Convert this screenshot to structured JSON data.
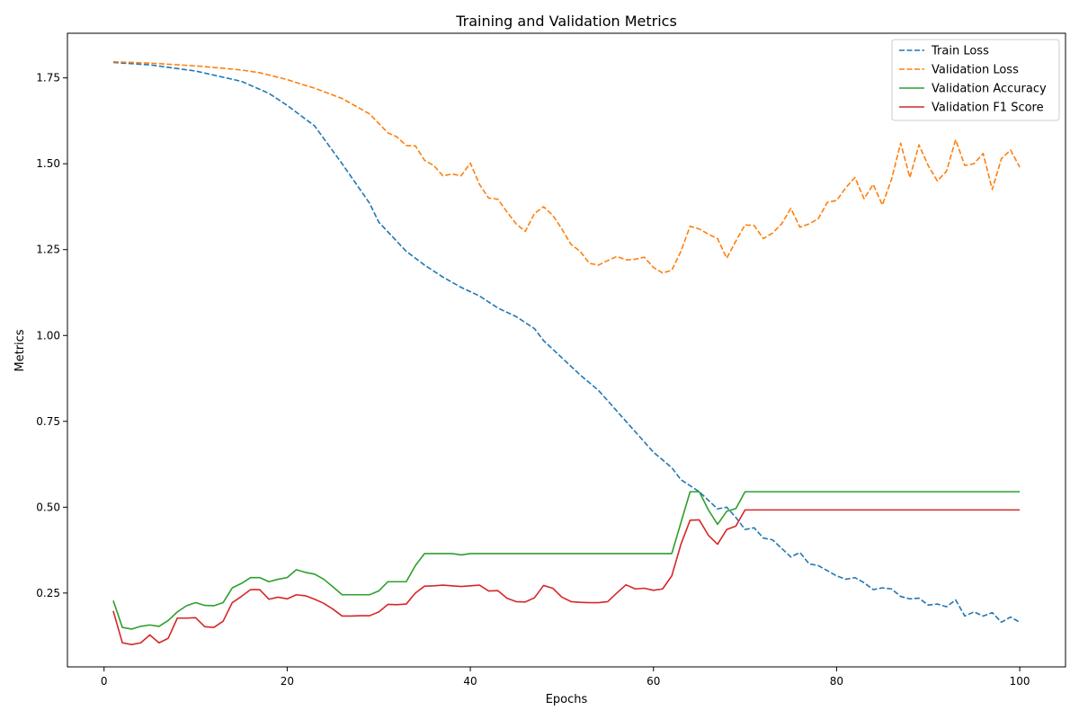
{
  "chart_data": {
    "type": "line",
    "title": "Training and Validation Metrics",
    "xlabel": "Epochs",
    "ylabel": "Metrics",
    "xlim": [
      -4,
      105
    ],
    "ylim": [
      0.035,
      1.88
    ],
    "xticks": [
      0,
      20,
      40,
      60,
      80,
      100
    ],
    "yticks": [
      0.25,
      0.5,
      0.75,
      1.0,
      1.25,
      1.5,
      1.75
    ],
    "ytick_labels": [
      "0.25",
      "0.50",
      "0.75",
      "1.00",
      "1.25",
      "1.50",
      "1.75"
    ],
    "grid": false,
    "legend_position": "top-right",
    "series": [
      {
        "name": "Train Loss",
        "color": "#1f77b4",
        "style": "dashed",
        "points": [
          [
            1,
            1.795
          ],
          [
            5,
            1.788
          ],
          [
            10,
            1.77
          ],
          [
            15,
            1.74
          ],
          [
            18,
            1.705
          ],
          [
            20,
            1.67
          ],
          [
            23,
            1.61
          ],
          [
            26,
            1.5
          ],
          [
            29,
            1.385
          ],
          [
            30,
            1.33
          ],
          [
            33,
            1.245
          ],
          [
            35,
            1.205
          ],
          [
            37,
            1.17
          ],
          [
            39,
            1.14
          ],
          [
            41,
            1.115
          ],
          [
            43,
            1.08
          ],
          [
            45,
            1.055
          ],
          [
            47,
            1.02
          ],
          [
            48,
            0.985
          ],
          [
            50,
            0.935
          ],
          [
            52,
            0.885
          ],
          [
            54,
            0.84
          ],
          [
            56,
            0.78
          ],
          [
            58,
            0.72
          ],
          [
            60,
            0.66
          ],
          [
            62,
            0.615
          ],
          [
            63,
            0.58
          ],
          [
            65,
            0.545
          ],
          [
            66,
            0.52
          ],
          [
            67,
            0.495
          ],
          [
            68,
            0.5
          ],
          [
            69,
            0.47
          ],
          [
            70,
            0.435
          ],
          [
            71,
            0.44
          ],
          [
            72,
            0.41
          ],
          [
            73,
            0.405
          ],
          [
            75,
            0.355
          ],
          [
            76,
            0.368
          ],
          [
            77,
            0.335
          ],
          [
            78,
            0.33
          ],
          [
            80,
            0.3
          ],
          [
            81,
            0.29
          ],
          [
            82,
            0.295
          ],
          [
            83,
            0.28
          ],
          [
            84,
            0.26
          ],
          [
            85,
            0.265
          ],
          [
            86,
            0.262
          ],
          [
            87,
            0.24
          ],
          [
            88,
            0.233
          ],
          [
            89,
            0.235
          ],
          [
            90,
            0.215
          ],
          [
            91,
            0.218
          ],
          [
            92,
            0.21
          ],
          [
            93,
            0.23
          ],
          [
            94,
            0.183
          ],
          [
            95,
            0.195
          ],
          [
            96,
            0.183
          ],
          [
            97,
            0.193
          ],
          [
            98,
            0.165
          ],
          [
            99,
            0.18
          ],
          [
            100,
            0.165
          ]
        ]
      },
      {
        "name": "Validation Loss",
        "color": "#ff7f0e",
        "style": "dashed",
        "points": [
          [
            1,
            1.797
          ],
          [
            5,
            1.793
          ],
          [
            10,
            1.785
          ],
          [
            13,
            1.778
          ],
          [
            15,
            1.773
          ],
          [
            17,
            1.765
          ],
          [
            20,
            1.745
          ],
          [
            22,
            1.728
          ],
          [
            23,
            1.72
          ],
          [
            26,
            1.69
          ],
          [
            28,
            1.66
          ],
          [
            29,
            1.645
          ],
          [
            31,
            1.59
          ],
          [
            32,
            1.578
          ],
          [
            33,
            1.553
          ],
          [
            34,
            1.552
          ],
          [
            35,
            1.51
          ],
          [
            36,
            1.495
          ],
          [
            37,
            1.465
          ],
          [
            38,
            1.47
          ],
          [
            39,
            1.465
          ],
          [
            40,
            1.502
          ],
          [
            41,
            1.44
          ],
          [
            42,
            1.4
          ],
          [
            43,
            1.397
          ],
          [
            44,
            1.36
          ],
          [
            45,
            1.325
          ],
          [
            46,
            1.303
          ],
          [
            47,
            1.355
          ],
          [
            48,
            1.375
          ],
          [
            49,
            1.35
          ],
          [
            50,
            1.31
          ],
          [
            51,
            1.265
          ],
          [
            52,
            1.245
          ],
          [
            53,
            1.21
          ],
          [
            54,
            1.205
          ],
          [
            55,
            1.218
          ],
          [
            56,
            1.23
          ],
          [
            57,
            1.22
          ],
          [
            58,
            1.222
          ],
          [
            59,
            1.228
          ],
          [
            60,
            1.198
          ],
          [
            61,
            1.182
          ],
          [
            62,
            1.19
          ],
          [
            63,
            1.245
          ],
          [
            64,
            1.318
          ],
          [
            65,
            1.31
          ],
          [
            66,
            1.295
          ],
          [
            67,
            1.282
          ],
          [
            68,
            1.225
          ],
          [
            69,
            1.275
          ],
          [
            70,
            1.322
          ],
          [
            71,
            1.32
          ],
          [
            72,
            1.282
          ],
          [
            73,
            1.298
          ],
          [
            74,
            1.325
          ],
          [
            75,
            1.37
          ],
          [
            76,
            1.315
          ],
          [
            77,
            1.325
          ],
          [
            78,
            1.34
          ],
          [
            79,
            1.388
          ],
          [
            80,
            1.393
          ],
          [
            81,
            1.43
          ],
          [
            82,
            1.46
          ],
          [
            83,
            1.398
          ],
          [
            84,
            1.44
          ],
          [
            85,
            1.38
          ],
          [
            86,
            1.455
          ],
          [
            87,
            1.56
          ],
          [
            88,
            1.46
          ],
          [
            89,
            1.555
          ],
          [
            90,
            1.495
          ],
          [
            91,
            1.45
          ],
          [
            92,
            1.478
          ],
          [
            93,
            1.57
          ],
          [
            94,
            1.495
          ],
          [
            95,
            1.5
          ],
          [
            96,
            1.53
          ],
          [
            97,
            1.425
          ],
          [
            98,
            1.515
          ],
          [
            99,
            1.54
          ],
          [
            100,
            1.49
          ]
        ]
      },
      {
        "name": "Validation Accuracy",
        "color": "#2ca02c",
        "style": "solid",
        "points": [
          [
            1,
            0.228
          ],
          [
            2,
            0.15
          ],
          [
            3,
            0.145
          ],
          [
            4,
            0.153
          ],
          [
            5,
            0.157
          ],
          [
            6,
            0.153
          ],
          [
            7,
            0.17
          ],
          [
            8,
            0.195
          ],
          [
            9,
            0.213
          ],
          [
            10,
            0.222
          ],
          [
            11,
            0.214
          ],
          [
            12,
            0.213
          ],
          [
            13,
            0.222
          ],
          [
            14,
            0.265
          ],
          [
            15,
            0.278
          ],
          [
            16,
            0.295
          ],
          [
            17,
            0.295
          ],
          [
            18,
            0.283
          ],
          [
            19,
            0.29
          ],
          [
            20,
            0.295
          ],
          [
            21,
            0.318
          ],
          [
            22,
            0.31
          ],
          [
            23,
            0.305
          ],
          [
            24,
            0.29
          ],
          [
            25,
            0.268
          ],
          [
            26,
            0.245
          ],
          [
            27,
            0.245
          ],
          [
            28,
            0.245
          ],
          [
            29,
            0.245
          ],
          [
            30,
            0.256
          ],
          [
            31,
            0.283
          ],
          [
            32,
            0.283
          ],
          [
            33,
            0.283
          ],
          [
            34,
            0.33
          ],
          [
            35,
            0.365
          ],
          [
            36,
            0.365
          ],
          [
            37,
            0.365
          ],
          [
            38,
            0.365
          ],
          [
            39,
            0.361
          ],
          [
            40,
            0.365
          ],
          [
            61,
            0.365
          ],
          [
            62,
            0.365
          ],
          [
            63,
            0.455
          ],
          [
            64,
            0.545
          ],
          [
            65,
            0.545
          ],
          [
            66,
            0.492
          ],
          [
            67,
            0.45
          ],
          [
            68,
            0.488
          ],
          [
            69,
            0.496
          ],
          [
            70,
            0.545
          ],
          [
            100,
            0.545
          ]
        ]
      },
      {
        "name": "Validation F1 Score",
        "color": "#d62728",
        "style": "solid",
        "points": [
          [
            1,
            0.198
          ],
          [
            2,
            0.105
          ],
          [
            3,
            0.1
          ],
          [
            4,
            0.105
          ],
          [
            5,
            0.128
          ],
          [
            6,
            0.105
          ],
          [
            7,
            0.118
          ],
          [
            8,
            0.177
          ],
          [
            9,
            0.177
          ],
          [
            10,
            0.178
          ],
          [
            11,
            0.152
          ],
          [
            12,
            0.15
          ],
          [
            13,
            0.168
          ],
          [
            14,
            0.222
          ],
          [
            15,
            0.24
          ],
          [
            16,
            0.26
          ],
          [
            17,
            0.26
          ],
          [
            18,
            0.232
          ],
          [
            19,
            0.238
          ],
          [
            20,
            0.233
          ],
          [
            21,
            0.245
          ],
          [
            22,
            0.242
          ],
          [
            23,
            0.232
          ],
          [
            24,
            0.22
          ],
          [
            25,
            0.203
          ],
          [
            26,
            0.183
          ],
          [
            27,
            0.183
          ],
          [
            28,
            0.184
          ],
          [
            29,
            0.184
          ],
          [
            30,
            0.195
          ],
          [
            31,
            0.217
          ],
          [
            32,
            0.216
          ],
          [
            33,
            0.218
          ],
          [
            34,
            0.25
          ],
          [
            35,
            0.27
          ],
          [
            36,
            0.271
          ],
          [
            37,
            0.273
          ],
          [
            38,
            0.271
          ],
          [
            39,
            0.269
          ],
          [
            40,
            0.271
          ],
          [
            41,
            0.273
          ],
          [
            42,
            0.256
          ],
          [
            43,
            0.257
          ],
          [
            44,
            0.235
          ],
          [
            45,
            0.225
          ],
          [
            46,
            0.224
          ],
          [
            47,
            0.236
          ],
          [
            48,
            0.272
          ],
          [
            49,
            0.264
          ],
          [
            50,
            0.238
          ],
          [
            51,
            0.225
          ],
          [
            52,
            0.223
          ],
          [
            53,
            0.222
          ],
          [
            54,
            0.222
          ],
          [
            55,
            0.225
          ],
          [
            56,
            0.25
          ],
          [
            57,
            0.274
          ],
          [
            58,
            0.262
          ],
          [
            59,
            0.264
          ],
          [
            60,
            0.258
          ],
          [
            61,
            0.262
          ],
          [
            62,
            0.3
          ],
          [
            63,
            0.392
          ],
          [
            64,
            0.462
          ],
          [
            65,
            0.463
          ],
          [
            66,
            0.418
          ],
          [
            67,
            0.392
          ],
          [
            68,
            0.435
          ],
          [
            69,
            0.445
          ],
          [
            70,
            0.492
          ],
          [
            100,
            0.492
          ]
        ]
      }
    ]
  }
}
